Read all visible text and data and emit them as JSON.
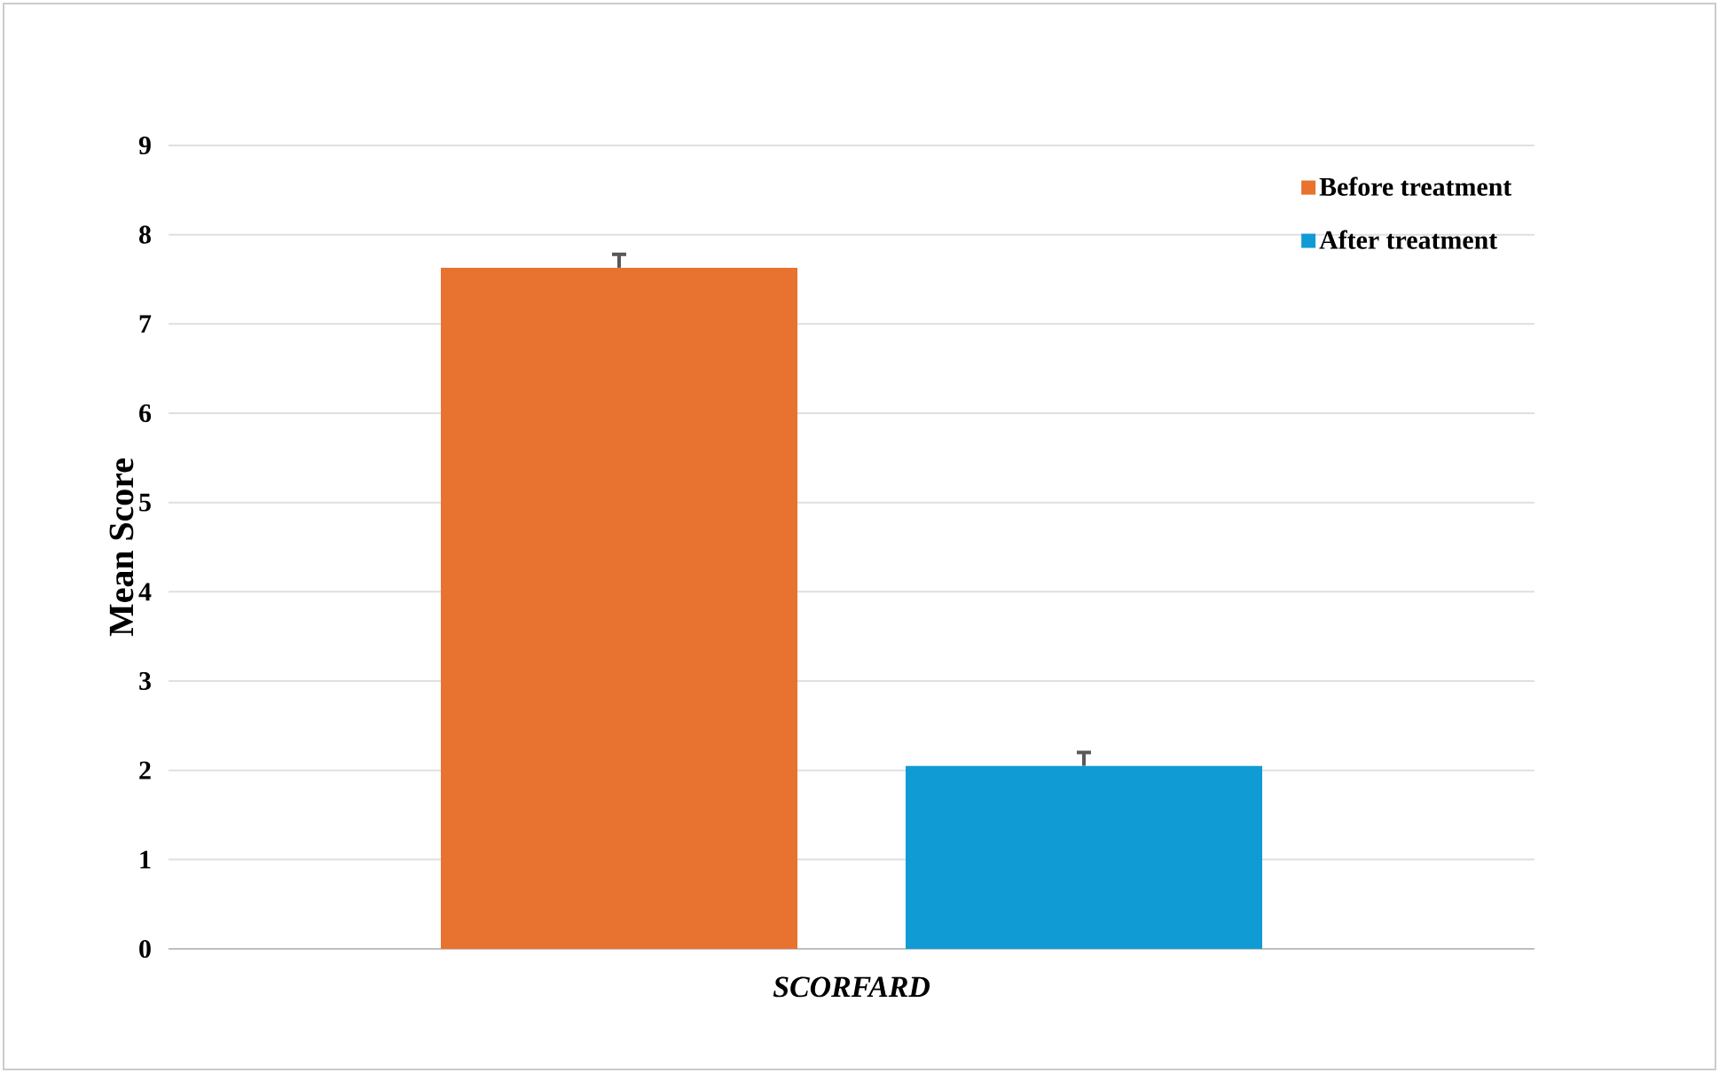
{
  "chart_data": {
    "type": "bar",
    "categories": [
      "SCORFARD"
    ],
    "ylabel": "Mean Score",
    "ylim": [
      0,
      9
    ],
    "yticks": [
      0,
      1,
      2,
      3,
      4,
      5,
      6,
      7,
      8,
      9
    ],
    "grid": "y",
    "legend": "top right",
    "series": [
      {
        "name": "Before treatment",
        "color": "#e8722f",
        "values": [
          7.63
        ],
        "errors": [
          0.15
        ]
      },
      {
        "name": "After treatment",
        "color": "#119bd4",
        "values": [
          2.05
        ],
        "errors": [
          0.15
        ]
      }
    ]
  }
}
